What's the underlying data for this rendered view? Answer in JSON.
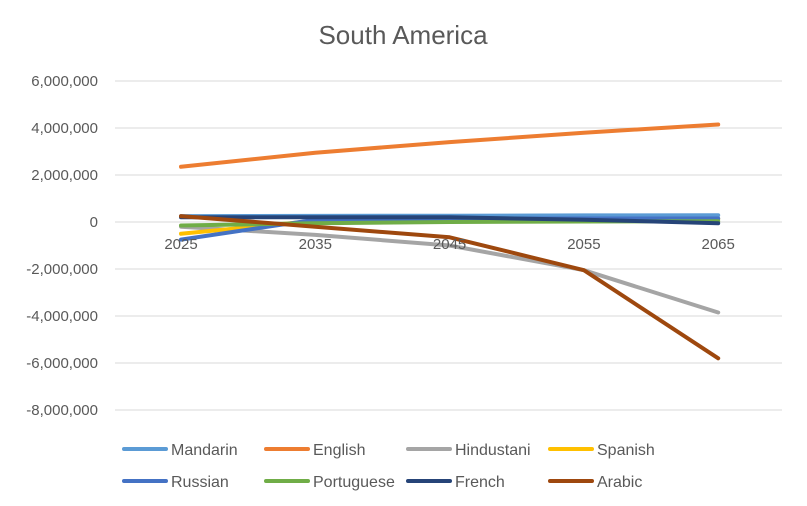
{
  "chart_data": {
    "type": "line",
    "title": "South America",
    "xlabel": "",
    "ylabel": "",
    "x": [
      "2025",
      "2035",
      "2045",
      "2055",
      "2065"
    ],
    "ylim": [
      -8000000,
      6000000
    ],
    "y_ticks": [
      6000000,
      4000000,
      2000000,
      0,
      -2000000,
      -4000000,
      -6000000,
      -8000000
    ],
    "y_tick_labels": [
      "6,000,000",
      "4,000,000",
      "2,000,000",
      "0",
      "-2,000,000",
      "-4,000,000",
      "-6,000,000",
      "-8,000,000"
    ],
    "grid": "horizontal",
    "legend_position": "bottom",
    "series": [
      {
        "name": "Mandarin",
        "color": "#5B9BD5",
        "values": [
          250000,
          260000,
          270000,
          280000,
          290000
        ]
      },
      {
        "name": "English",
        "color": "#ED7D31",
        "values": [
          2350000,
          2950000,
          3400000,
          3800000,
          4150000
        ]
      },
      {
        "name": "Hindustani",
        "color": "#A5A5A5",
        "values": [
          -200000,
          -550000,
          -1000000,
          -2050000,
          -3850000
        ]
      },
      {
        "name": "Spanish",
        "color": "#FFC000",
        "values": [
          -500000,
          50000,
          100000,
          120000,
          130000
        ]
      },
      {
        "name": "Russian",
        "color": "#4472C4",
        "values": [
          -750000,
          100000,
          150000,
          150000,
          150000
        ]
      },
      {
        "name": "Portuguese",
        "color": "#70AD47",
        "values": [
          -150000,
          -50000,
          0,
          20000,
          30000
        ]
      },
      {
        "name": "French",
        "color": "#264478",
        "values": [
          200000,
          200000,
          200000,
          100000,
          -50000
        ]
      },
      {
        "name": "Arabic",
        "color": "#9E480E",
        "values": [
          250000,
          -200000,
          -650000,
          -2050000,
          -5800000
        ]
      }
    ]
  }
}
